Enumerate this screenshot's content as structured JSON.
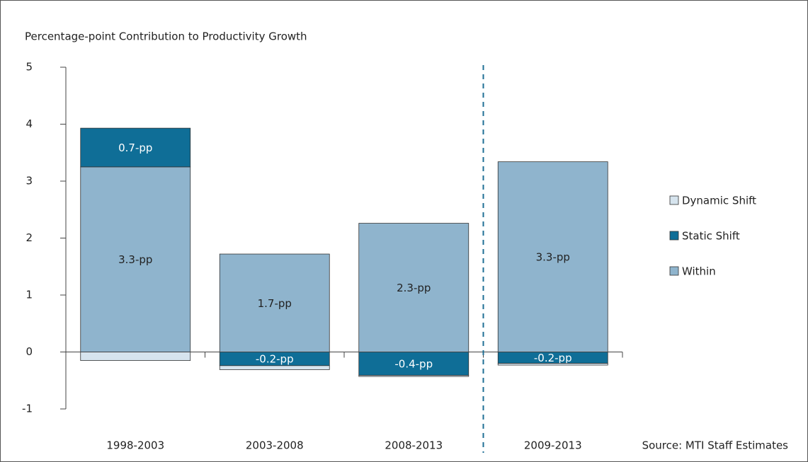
{
  "chart_data": {
    "type": "bar",
    "stacked": true,
    "y_axis_title": "Percentage-point Contribution to Productivity Growth",
    "annotation": "Source: MTI Staff Estimates",
    "categories": [
      "1998-2003",
      "2003-2008",
      "2008-2013",
      "2009-2013"
    ],
    "series": [
      {
        "name": "Within",
        "color": "#8fb4cd",
        "values": [
          3.25,
          1.72,
          2.26,
          3.34
        ],
        "value_labels": [
          "3.3-pp",
          "1.7-pp",
          "2.3-pp",
          "3.3-pp"
        ]
      },
      {
        "name": "Static Shift",
        "color": "#0f6e97",
        "values": [
          0.68,
          -0.24,
          -0.41,
          -0.2
        ],
        "value_labels": [
          "0.7-pp",
          "-0.2-pp",
          "-0.4-pp",
          "-0.2-pp"
        ]
      },
      {
        "name": "Dynamic Shift",
        "color": "#d6e4ee",
        "values": [
          -0.15,
          -0.07,
          -0.02,
          -0.03
        ]
      }
    ],
    "ylim": [
      -1,
      5
    ],
    "yticks": [
      -1,
      0,
      1,
      2,
      3,
      4,
      5
    ],
    "grid": false,
    "legend": "right"
  }
}
